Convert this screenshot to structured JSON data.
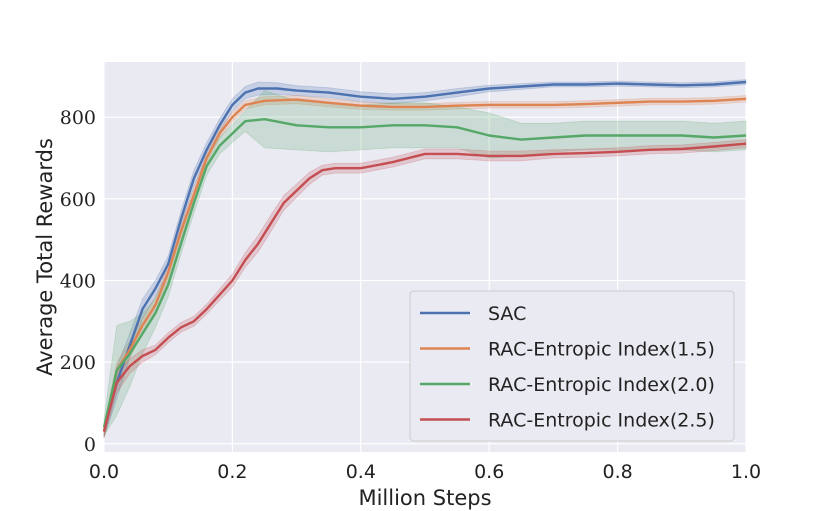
{
  "chart_data": {
    "type": "line",
    "title": "",
    "xlabel": "Million Steps",
    "ylabel": "Average Total Rewards",
    "xlim": [
      0.0,
      1.0
    ],
    "ylim": [
      -20,
      935
    ],
    "xticks": [
      0.0,
      0.2,
      0.4,
      0.6,
      0.8,
      1.0
    ],
    "xtick_labels": [
      "0.0",
      "0.2",
      "0.4",
      "0.6",
      "0.8",
      "1.0"
    ],
    "yticks": [
      0,
      200,
      400,
      600,
      800
    ],
    "ytick_labels": [
      "0",
      "200",
      "400",
      "600",
      "800"
    ],
    "grid": true,
    "legend_position": "lower-right",
    "series": [
      {
        "name": "SAC",
        "color": "#4c72b0",
        "x": [
          0.0,
          0.02,
          0.04,
          0.06,
          0.08,
          0.1,
          0.12,
          0.14,
          0.16,
          0.18,
          0.2,
          0.22,
          0.24,
          0.27,
          0.3,
          0.35,
          0.4,
          0.45,
          0.5,
          0.55,
          0.6,
          0.65,
          0.7,
          0.75,
          0.8,
          0.85,
          0.9,
          0.95,
          1.0
        ],
        "y": [
          30,
          150,
          240,
          330,
          380,
          440,
          550,
          650,
          720,
          780,
          830,
          860,
          870,
          870,
          865,
          860,
          850,
          845,
          850,
          860,
          870,
          875,
          880,
          880,
          882,
          880,
          878,
          880,
          886
        ],
        "band": [
          15,
          40,
          30,
          25,
          20,
          20,
          20,
          20,
          18,
          16,
          15,
          15,
          16,
          14,
          12,
          12,
          12,
          12,
          10,
          10,
          8,
          7,
          6,
          6,
          6,
          6,
          6,
          6,
          6
        ]
      },
      {
        "name": "RAC-Entropic Index(1.5)",
        "color": "#dd8452",
        "x": [
          0.0,
          0.02,
          0.04,
          0.06,
          0.08,
          0.1,
          0.12,
          0.14,
          0.16,
          0.18,
          0.2,
          0.22,
          0.25,
          0.3,
          0.35,
          0.4,
          0.45,
          0.5,
          0.55,
          0.6,
          0.65,
          0.7,
          0.75,
          0.8,
          0.85,
          0.9,
          0.95,
          1.0
        ],
        "y": [
          30,
          180,
          230,
          290,
          340,
          420,
          520,
          610,
          700,
          760,
          800,
          830,
          840,
          843,
          835,
          828,
          825,
          825,
          828,
          830,
          830,
          830,
          832,
          835,
          838,
          838,
          840,
          845
        ],
        "band": [
          15,
          20,
          20,
          18,
          18,
          18,
          18,
          16,
          14,
          12,
          12,
          10,
          10,
          10,
          10,
          9,
          8,
          8,
          8,
          8,
          8,
          8,
          8,
          8,
          8,
          8,
          8,
          8
        ]
      },
      {
        "name": "RAC-Entropic Index(2.0)",
        "color": "#55a868",
        "x": [
          0.0,
          0.02,
          0.04,
          0.06,
          0.08,
          0.1,
          0.12,
          0.14,
          0.16,
          0.18,
          0.2,
          0.22,
          0.25,
          0.3,
          0.35,
          0.4,
          0.45,
          0.5,
          0.55,
          0.6,
          0.65,
          0.7,
          0.75,
          0.8,
          0.85,
          0.9,
          0.95,
          1.0
        ],
        "y": [
          40,
          180,
          220,
          270,
          320,
          390,
          490,
          590,
          680,
          730,
          760,
          790,
          795,
          780,
          775,
          775,
          780,
          780,
          775,
          755,
          745,
          750,
          755,
          755,
          755,
          755,
          750,
          755
        ],
        "band": [
          20,
          110,
          80,
          50,
          35,
          30,
          25,
          25,
          22,
          20,
          22,
          25,
          70,
          60,
          60,
          55,
          55,
          55,
          50,
          55,
          40,
          35,
          35,
          35,
          35,
          35,
          35,
          35
        ]
      },
      {
        "name": "RAC-Entropic Index(2.5)",
        "color": "#c44e52",
        "x": [
          0.0,
          0.02,
          0.04,
          0.06,
          0.08,
          0.1,
          0.12,
          0.14,
          0.16,
          0.18,
          0.2,
          0.22,
          0.24,
          0.26,
          0.28,
          0.3,
          0.32,
          0.34,
          0.36,
          0.4,
          0.45,
          0.5,
          0.55,
          0.6,
          0.65,
          0.7,
          0.75,
          0.8,
          0.85,
          0.9,
          0.95,
          1.0
        ],
        "y": [
          30,
          150,
          190,
          215,
          230,
          260,
          285,
          300,
          330,
          365,
          400,
          450,
          490,
          540,
          590,
          620,
          650,
          670,
          675,
          675,
          690,
          710,
          710,
          705,
          705,
          710,
          712,
          715,
          720,
          722,
          728,
          735
        ],
        "band": [
          15,
          25,
          18,
          15,
          12,
          12,
          12,
          12,
          12,
          14,
          16,
          18,
          20,
          20,
          18,
          16,
          15,
          12,
          12,
          12,
          12,
          12,
          12,
          12,
          12,
          10,
          10,
          10,
          10,
          10,
          10,
          10
        ]
      }
    ]
  }
}
